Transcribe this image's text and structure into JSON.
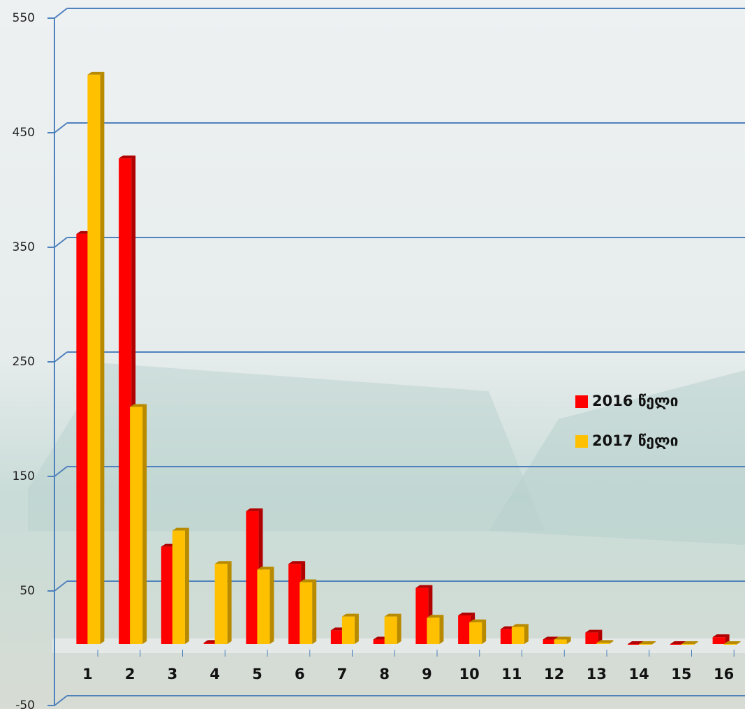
{
  "chart_data": {
    "type": "bar",
    "categories": [
      "1",
      "2",
      "3",
      "4",
      "5",
      "6",
      "7",
      "8",
      "9",
      "10",
      "11",
      "12",
      "13",
      "14",
      "15",
      "16"
    ],
    "series": [
      {
        "name": "2016 წელი",
        "color": "#ff0000",
        "values": [
          358,
          424,
          85,
          1,
          116,
          70,
          12,
          4,
          49,
          25,
          13,
          4,
          10,
          0,
          0,
          6
        ]
      },
      {
        "name": "2017 წელი",
        "color": "#ffc000",
        "values": [
          497,
          207,
          99,
          70,
          65,
          54,
          24,
          24,
          23,
          19,
          15,
          4,
          1,
          0,
          0,
          0
        ]
      }
    ],
    "ylim": [
      -50,
      550
    ],
    "yticks": [
      -50,
      50,
      150,
      250,
      350,
      450,
      550
    ],
    "grid": true,
    "legend": "right"
  }
}
